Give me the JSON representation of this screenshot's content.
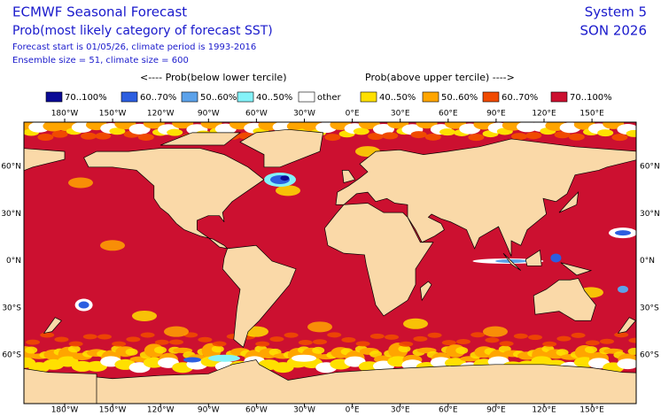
{
  "header": {
    "title": "ECMWF Seasonal Forecast",
    "subtitle": "Prob(most likely category of forecast SST)",
    "line3": "Forecast start is 01/05/26, climate period is 1993-2016",
    "line4": "Ensemble size = 51, climate size = 600",
    "system": "System 5",
    "season": "SON 2026"
  },
  "legend": {
    "below_heading": "<---- Prob(below lower tercile)",
    "above_heading": "Prob(above upper tercile) ---->",
    "items": [
      {
        "label": "70..100%",
        "color": "#0b0b96"
      },
      {
        "label": "60..70%",
        "color": "#2c5ee0"
      },
      {
        "label": "50..60%",
        "color": "#5ca2ea"
      },
      {
        "label": "40..50%",
        "color": "#84f2f8"
      },
      {
        "label": "other",
        "color": "#ffffff"
      },
      {
        "label": "40..50%",
        "color": "#ffe000"
      },
      {
        "label": "50..60%",
        "color": "#ffa500"
      },
      {
        "label": "60..70%",
        "color": "#f04a00"
      },
      {
        "label": "70..100%",
        "color": "#cc1030"
      }
    ]
  },
  "map": {
    "lon_labels": [
      "180°W",
      "150°W",
      "120°W",
      "90°W",
      "60°W",
      "30°W",
      "0°E",
      "30°E",
      "60°E",
      "90°E",
      "120°E",
      "150°E"
    ],
    "lat_labels": [
      "60°N",
      "30°N",
      "0°N",
      "30°S",
      "60°S"
    ],
    "land_color": "#fad9a8"
  }
}
